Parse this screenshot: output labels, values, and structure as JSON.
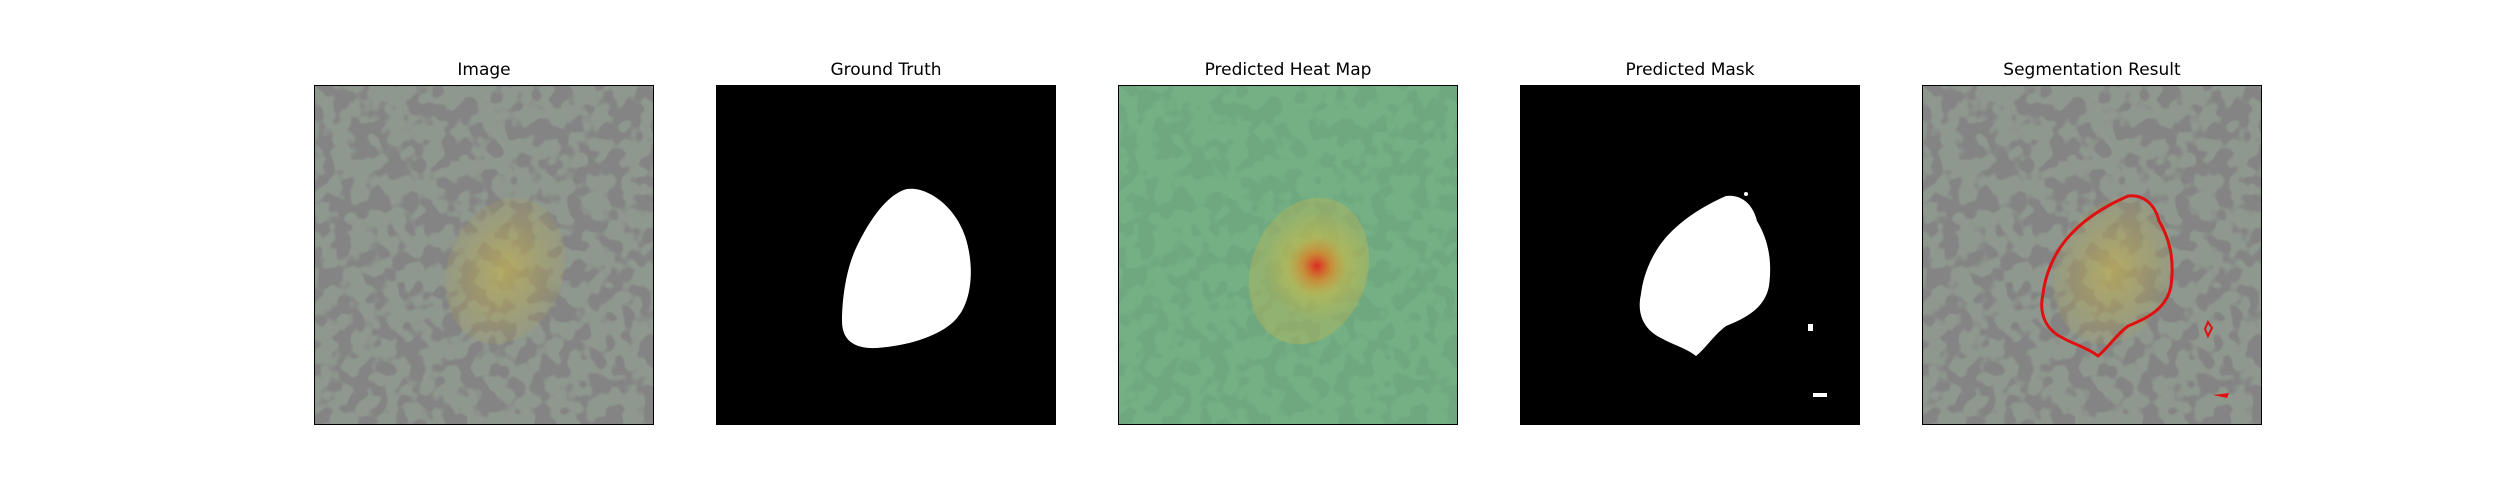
{
  "figure": {
    "panels": [
      {
        "title": "Image"
      },
      {
        "title": "Ground Truth"
      },
      {
        "title": "Predicted Heat Map"
      },
      {
        "title": "Predicted Mask"
      },
      {
        "title": "Segmentation Result"
      }
    ]
  },
  "colors": {
    "texture_base": "#8f988f",
    "texture_spot": "#3b3b3b",
    "lesion_tint": "#b8a64a",
    "heat_overlay": "#5fc47a",
    "heat_peak": "#e0241e",
    "mask_bg": "#000000",
    "mask_fg": "#ffffff",
    "contour": "#e01010"
  }
}
